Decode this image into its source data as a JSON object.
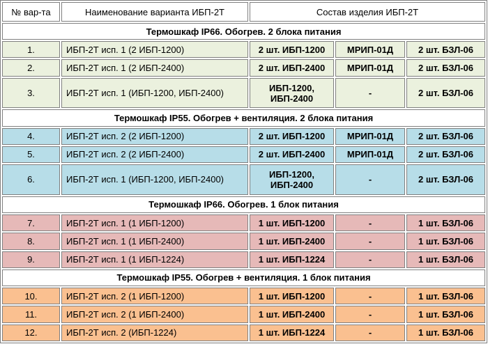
{
  "headers": [
    "№ вар-та",
    "Наименование варианта ИБП-2Т",
    "Состав изделия ИБП-2Т"
  ],
  "groups": [
    {
      "title": "Термошкаф IP66. Обогрев. 2 блока питания",
      "color": "#ebf1de",
      "rows": [
        {
          "num": "1.",
          "name": "ИБП-2Т исп. 1 (2 ИБП-1200)",
          "c1": "2 шт. ИБП-1200",
          "c2": "МРИП-01Д",
          "c3": "2 шт. БЗЛ-06"
        },
        {
          "num": "2.",
          "name": "ИБП-2Т исп. 1 (2 ИБП-2400)",
          "c1": "2 шт. ИБП-2400",
          "c2": "МРИП-01Д",
          "c3": "2 шт. БЗЛ-06"
        },
        {
          "num": "3.",
          "name": "ИБП-2Т исп. 1 (ИБП-1200, ИБП-2400)",
          "c1": "ИБП-1200, ИБП-2400",
          "c2": "-",
          "c3": "2 шт. БЗЛ-06"
        }
      ]
    },
    {
      "title": "Термошкаф IP55. Обогрев + вентиляция. 2 блока питания",
      "color": "#b7dde8",
      "rows": [
        {
          "num": "4.",
          "name": "ИБП-2Т исп. 2 (2 ИБП-1200)",
          "c1": "2 шт. ИБП-1200",
          "c2": "МРИП-01Д",
          "c3": "2 шт. БЗЛ-06"
        },
        {
          "num": "5.",
          "name": "ИБП-2Т исп. 2 (2 ИБП-2400)",
          "c1": "2 шт. ИБП-2400",
          "c2": "МРИП-01Д",
          "c3": "2 шт. БЗЛ-06"
        },
        {
          "num": "6.",
          "name": "ИБП-2Т исп. 1 (ИБП-1200, ИБП-2400)",
          "c1": "ИБП-1200, ИБП-2400",
          "c2": "-",
          "c3": "2 шт. БЗЛ-06"
        }
      ]
    },
    {
      "title": "Термошкаф IP66. Обогрев. 1 блок питания",
      "color": "#e6b9b8",
      "rows": [
        {
          "num": "7.",
          "name": "ИБП-2Т исп. 1 (1 ИБП-1200)",
          "c1": "1 шт. ИБП-1200",
          "c2": "-",
          "c3": "1 шт. БЗЛ-06"
        },
        {
          "num": "8.",
          "name": "ИБП-2Т исп. 1 (1 ИБП-2400)",
          "c1": "1 шт. ИБП-2400",
          "c2": "-",
          "c3": "1 шт. БЗЛ-06"
        },
        {
          "num": "9.",
          "name": "ИБП-2Т исп. 1 (1 ИБП-1224)",
          "c1": "1 шт. ИБП-1224",
          "c2": "-",
          "c3": "1 шт. БЗЛ-06"
        }
      ]
    },
    {
      "title": "Термошкаф IP55. Обогрев + вентиляция. 1 блок питания",
      "color": "#fac090",
      "rows": [
        {
          "num": "10.",
          "name": "ИБП-2Т исп. 2 (1 ИБП-1200)",
          "c1": "1 шт. ИБП-1200",
          "c2": "-",
          "c3": "1 шт. БЗЛ-06"
        },
        {
          "num": "11.",
          "name": "ИБП-2Т исп. 2 (1 ИБП-2400)",
          "c1": "1 шт. ИБП-2400",
          "c2": "-",
          "c3": "1 шт. БЗЛ-06"
        },
        {
          "num": "12.",
          "name": "ИБП-2Т исп. 2 (ИБП-1224)",
          "c1": "1 шт. ИБП-1224",
          "c2": "-",
          "c3": "1 шт. БЗЛ-06"
        }
      ]
    }
  ]
}
